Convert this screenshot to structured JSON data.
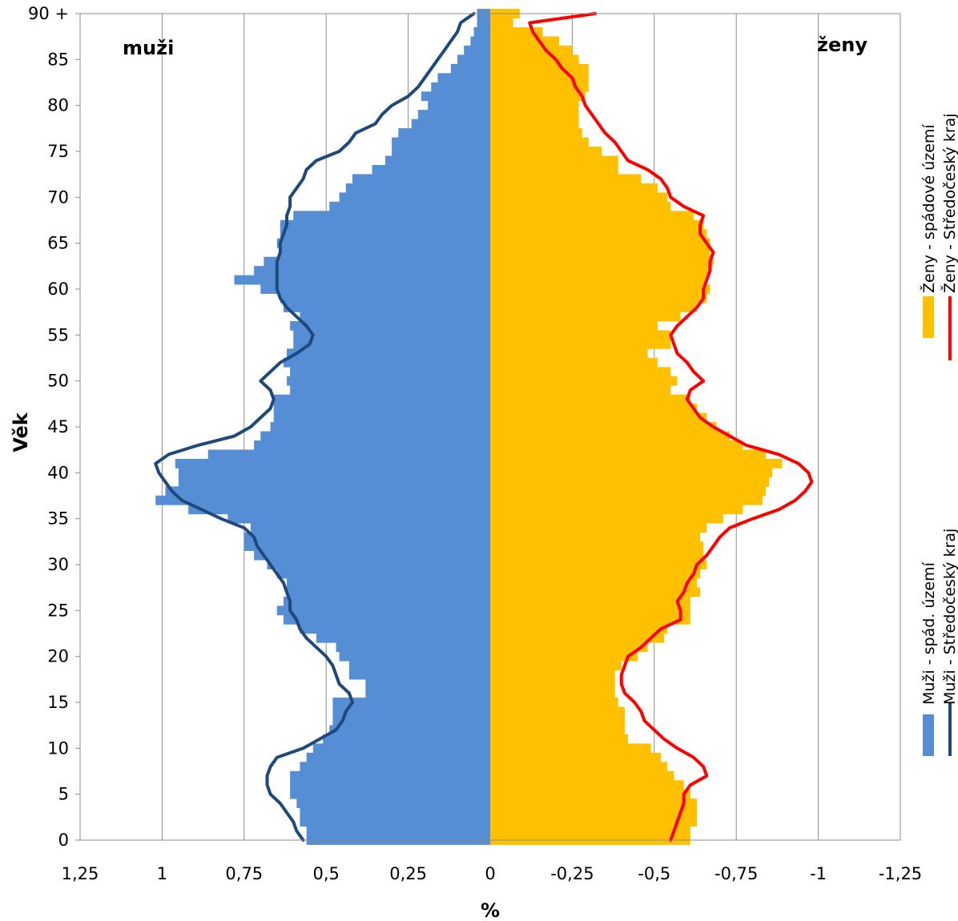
{
  "chart_data": {
    "type": "bar",
    "orientation": "horizontal",
    "ylabel": "Věk",
    "xlabel": "%",
    "xlim": [
      -1.25,
      1.25
    ],
    "x_tick_labels": [
      "1,25",
      "1",
      "0,75",
      "0,5",
      "0,25",
      "0",
      "-0,25",
      "-0,5",
      "-0,75",
      "-1",
      "-1,25"
    ],
    "y_tick_labels": [
      "0",
      "5",
      "10",
      "15",
      "20",
      "25",
      "30",
      "35",
      "40",
      "45",
      "50",
      "55",
      "60",
      "65",
      "70",
      "75",
      "80",
      "85",
      "90 +"
    ],
    "ages": [
      0,
      1,
      2,
      3,
      4,
      5,
      6,
      7,
      8,
      9,
      10,
      11,
      12,
      13,
      14,
      15,
      16,
      17,
      18,
      19,
      20,
      21,
      22,
      23,
      24,
      25,
      26,
      27,
      28,
      29,
      30,
      31,
      32,
      33,
      34,
      35,
      36,
      37,
      38,
      39,
      40,
      41,
      42,
      43,
      44,
      45,
      46,
      47,
      48,
      49,
      50,
      51,
      52,
      53,
      54,
      55,
      56,
      57,
      58,
      59,
      60,
      61,
      62,
      63,
      64,
      65,
      66,
      67,
      68,
      69,
      70,
      71,
      72,
      73,
      74,
      75,
      76,
      77,
      78,
      79,
      80,
      81,
      82,
      83,
      84,
      85,
      86,
      87,
      88,
      89,
      90
    ],
    "left_label": "muži",
    "right_label": "ženy",
    "grid": true,
    "series": [
      {
        "name": "Muži - spád. území",
        "kind": "bar",
        "color": "#558ed5",
        "values": [
          0.56,
          0.56,
          0.58,
          0.58,
          0.59,
          0.61,
          0.61,
          0.61,
          0.58,
          0.56,
          0.54,
          0.51,
          0.49,
          0.48,
          0.48,
          0.48,
          0.38,
          0.38,
          0.43,
          0.43,
          0.46,
          0.47,
          0.53,
          0.58,
          0.63,
          0.65,
          0.63,
          0.62,
          0.62,
          0.65,
          0.68,
          0.72,
          0.75,
          0.75,
          0.73,
          0.8,
          0.92,
          1.02,
          0.99,
          0.95,
          0.95,
          0.96,
          0.86,
          0.72,
          0.7,
          0.67,
          0.66,
          0.66,
          0.66,
          0.61,
          0.62,
          0.61,
          0.63,
          0.62,
          0.6,
          0.6,
          0.61,
          0.58,
          0.63,
          0.64,
          0.7,
          0.78,
          0.72,
          0.69,
          0.64,
          0.65,
          0.64,
          0.64,
          0.6,
          0.49,
          0.46,
          0.44,
          0.42,
          0.36,
          0.32,
          0.3,
          0.3,
          0.28,
          0.24,
          0.22,
          0.19,
          0.21,
          0.18,
          0.16,
          0.12,
          0.1,
          0.08,
          0.06,
          0.05,
          0.04,
          0.04
        ]
      },
      {
        "name": "Muži - Středočeský kraj",
        "kind": "line",
        "color": "#1f497d",
        "values": [
          0.57,
          0.59,
          0.6,
          0.62,
          0.64,
          0.67,
          0.68,
          0.68,
          0.67,
          0.65,
          0.57,
          0.52,
          0.47,
          0.45,
          0.44,
          0.42,
          0.43,
          0.46,
          0.47,
          0.48,
          0.5,
          0.53,
          0.56,
          0.58,
          0.59,
          0.61,
          0.61,
          0.62,
          0.63,
          0.65,
          0.67,
          0.69,
          0.71,
          0.72,
          0.75,
          0.82,
          0.88,
          0.94,
          0.97,
          0.99,
          1.01,
          1.02,
          0.98,
          0.89,
          0.78,
          0.73,
          0.7,
          0.67,
          0.66,
          0.67,
          0.7,
          0.67,
          0.64,
          0.59,
          0.55,
          0.54,
          0.56,
          0.59,
          0.62,
          0.64,
          0.65,
          0.65,
          0.65,
          0.65,
          0.64,
          0.64,
          0.63,
          0.62,
          0.62,
          0.61,
          0.61,
          0.59,
          0.57,
          0.56,
          0.53,
          0.46,
          0.43,
          0.41,
          0.35,
          0.33,
          0.3,
          0.25,
          0.22,
          0.2,
          0.18,
          0.16,
          0.14,
          0.12,
          0.1,
          0.09,
          0.05
        ]
      },
      {
        "name": "Ženy - spádové území",
        "kind": "bar",
        "color": "#ffc000",
        "values": [
          -0.61,
          -0.61,
          -0.63,
          -0.63,
          -0.63,
          -0.61,
          -0.59,
          -0.56,
          -0.54,
          -0.52,
          -0.49,
          -0.42,
          -0.41,
          -0.41,
          -0.41,
          -0.39,
          -0.38,
          -0.38,
          -0.38,
          -0.4,
          -0.45,
          -0.48,
          -0.53,
          -0.54,
          -0.61,
          -0.61,
          -0.61,
          -0.64,
          -0.63,
          -0.64,
          -0.66,
          -0.65,
          -0.65,
          -0.64,
          -0.66,
          -0.71,
          -0.77,
          -0.83,
          -0.84,
          -0.85,
          -0.86,
          -0.89,
          -0.84,
          -0.77,
          -0.73,
          -0.69,
          -0.66,
          -0.63,
          -0.61,
          -0.55,
          -0.57,
          -0.55,
          -0.51,
          -0.48,
          -0.55,
          -0.55,
          -0.51,
          -0.58,
          -0.63,
          -0.66,
          -0.67,
          -0.66,
          -0.67,
          -0.68,
          -0.67,
          -0.67,
          -0.66,
          -0.65,
          -0.62,
          -0.55,
          -0.54,
          -0.51,
          -0.46,
          -0.39,
          -0.39,
          -0.34,
          -0.3,
          -0.28,
          -0.27,
          -0.27,
          -0.27,
          -0.29,
          -0.3,
          -0.3,
          -0.3,
          -0.27,
          -0.25,
          -0.21,
          -0.16,
          -0.07,
          -0.09
        ]
      },
      {
        "name": "Ženy - Středočeský kraj",
        "kind": "line",
        "color": "#ff0000",
        "values": [
          -0.55,
          -0.56,
          -0.57,
          -0.58,
          -0.59,
          -0.59,
          -0.61,
          -0.66,
          -0.65,
          -0.62,
          -0.57,
          -0.53,
          -0.5,
          -0.47,
          -0.46,
          -0.44,
          -0.41,
          -0.4,
          -0.4,
          -0.41,
          -0.42,
          -0.46,
          -0.49,
          -0.52,
          -0.58,
          -0.58,
          -0.57,
          -0.59,
          -0.6,
          -0.62,
          -0.63,
          -0.66,
          -0.68,
          -0.7,
          -0.73,
          -0.8,
          -0.88,
          -0.93,
          -0.96,
          -0.98,
          -0.97,
          -0.94,
          -0.88,
          -0.78,
          -0.73,
          -0.68,
          -0.64,
          -0.62,
          -0.6,
          -0.61,
          -0.65,
          -0.62,
          -0.6,
          -0.57,
          -0.56,
          -0.55,
          -0.57,
          -0.6,
          -0.63,
          -0.65,
          -0.65,
          -0.66,
          -0.67,
          -0.67,
          -0.68,
          -0.66,
          -0.64,
          -0.64,
          -0.65,
          -0.59,
          -0.55,
          -0.54,
          -0.52,
          -0.48,
          -0.42,
          -0.4,
          -0.38,
          -0.35,
          -0.33,
          -0.31,
          -0.29,
          -0.28,
          -0.26,
          -0.25,
          -0.22,
          -0.2,
          -0.17,
          -0.15,
          -0.13,
          -0.12,
          -0.32
        ]
      }
    ],
    "legend": {
      "placement": "right",
      "groups": [
        {
          "bar_label": "Muži - spád. území",
          "line_label": "Muži - Středočeský kraj"
        },
        {
          "bar_label": "Ženy - spádové území",
          "line_label": "Ženy - Středočeský kraj"
        }
      ]
    }
  }
}
